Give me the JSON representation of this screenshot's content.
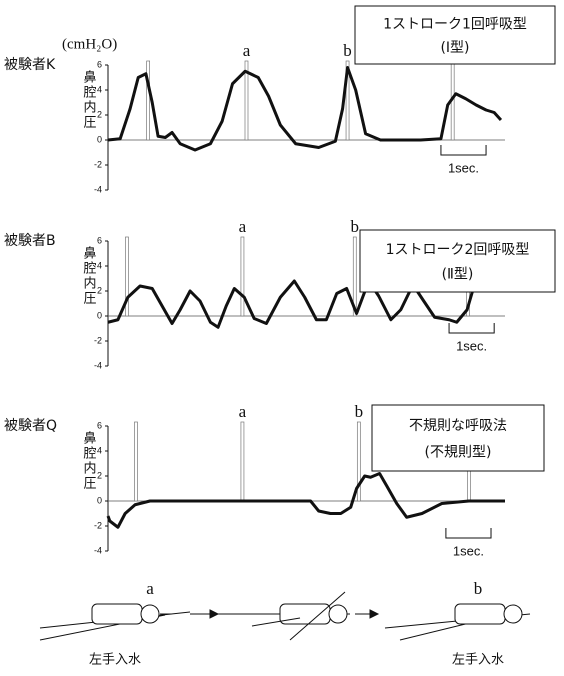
{
  "unit": "(cmH₂O)",
  "chart_data": [
    {
      "type": "line",
      "title": "被験者K",
      "y_label": "鼻腔内圧",
      "box_text": [
        "1ストローク1回呼吸型",
        "(Ⅰ型)"
      ],
      "xlim": [
        0,
        8.8
      ],
      "ylim": [
        -4,
        6
      ],
      "yticks": [
        -4,
        -2,
        0,
        2,
        4,
        6
      ],
      "x": [
        0,
        0.27,
        0.49,
        0.67,
        0.84,
        0.98,
        1.11,
        1.27,
        1.42,
        1.6,
        1.93,
        2.27,
        2.53,
        2.76,
        3.04,
        3.33,
        3.56,
        3.82,
        4.16,
        4.67,
        5.04,
        5.2,
        5.31,
        5.49,
        5.71,
        6.04,
        6.93,
        7.38,
        7.53,
        7.71,
        7.93,
        8.16,
        8.38,
        8.56,
        8.71
      ],
      "series": [
        {
          "color": "#111111",
          "values": [
            0,
            0.1,
            2.5,
            5,
            5.3,
            3,
            0.3,
            0.2,
            0.6,
            -0.3,
            -0.8,
            -0.3,
            1.5,
            4.5,
            5.5,
            5,
            3.5,
            1.2,
            -0.3,
            -0.6,
            -0.1,
            2.5,
            5.8,
            4,
            0.5,
            0,
            0,
            0.1,
            2.8,
            3.7,
            3.3,
            2.8,
            2.4,
            2.2,
            1.6
          ]
        }
      ],
      "event_x": [
        0.89,
        3.07,
        5.31,
        7.64
      ],
      "event_labels": [
        {
          "x": 3.07,
          "text": "a"
        },
        {
          "x": 5.31,
          "text": "b"
        }
      ],
      "scale_bar": {
        "x": 7.38,
        "length": 1,
        "label": "1sec."
      }
    },
    {
      "type": "line",
      "title": "被験者B",
      "y_label": "鼻腔内圧",
      "box_text": [
        "1ストローク2回呼吸型",
        "(Ⅱ型)"
      ],
      "xlim": [
        0,
        8.8
      ],
      "ylim": [
        -4,
        6
      ],
      "yticks": [
        -4,
        -2,
        0,
        2,
        4,
        6
      ],
      "x": [
        0,
        0.22,
        0.44,
        0.71,
        0.98,
        1.2,
        1.42,
        1.6,
        1.82,
        2.04,
        2.27,
        2.44,
        2.62,
        2.8,
        3.02,
        3.24,
        3.51,
        3.82,
        4.13,
        4.36,
        4.62,
        4.84,
        5.07,
        5.29,
        5.51,
        5.78,
        6.0,
        6.27,
        6.49,
        6.76,
        6.98,
        7.24,
        7.56,
        7.73,
        7.96,
        8.13,
        8.31,
        8.49
      ],
      "series": [
        {
          "color": "#111111",
          "values": [
            -0.5,
            -0.3,
            1.5,
            2.4,
            2.2,
            0.8,
            -0.6,
            0.5,
            2,
            1.2,
            -0.5,
            -0.9,
            0.8,
            2.2,
            1.5,
            -0.2,
            -0.6,
            1.5,
            2.8,
            1.5,
            -0.3,
            -0.3,
            1.8,
            2.2,
            0.2,
            2.8,
            1.6,
            -0.3,
            0.5,
            2.5,
            1.3,
            -0.1,
            -0.3,
            -0.5,
            0.5,
            2.6,
            3.1,
            2.2
          ]
        }
      ],
      "event_x": [
        0.42,
        2.98,
        5.47,
        7.98
      ],
      "event_labels": [
        {
          "x": 2.98,
          "text": "a"
        },
        {
          "x": 5.47,
          "text": "b"
        }
      ],
      "scale_bar": {
        "x": 7.56,
        "length": 1,
        "label": "1sec."
      }
    },
    {
      "type": "line",
      "title": "被験者Q",
      "y_label": "鼻腔内圧",
      "box_text": [
        "不規則な呼吸法",
        "(不規則型)"
      ],
      "xlim": [
        0,
        8.8
      ],
      "ylim": [
        -4,
        6
      ],
      "yticks": [
        -4,
        -2,
        0,
        2,
        4,
        6
      ],
      "x": [
        0,
        0.04,
        0.22,
        0.38,
        0.6,
        0.93,
        2.0,
        3.5,
        4.49,
        4.67,
        4.93,
        5.16,
        5.38,
        5.51,
        5.69,
        5.82,
        6.02,
        6.18,
        6.4,
        6.62,
        6.96,
        7.4,
        8.0,
        8.8
      ],
      "series": [
        {
          "color": "#111111",
          "values": [
            -1.2,
            -1.6,
            -2.1,
            -1.0,
            -0.3,
            0,
            0,
            0,
            0,
            -0.8,
            -1,
            -1,
            -0.5,
            1.0,
            2.0,
            1.9,
            2.2,
            1.2,
            -0.2,
            -1.3,
            -1,
            -0.2,
            0,
            0
          ]
        }
      ],
      "event_x": [
        0.62,
        2.98,
        5.56,
        8.0
      ],
      "event_labels": [
        {
          "x": 2.98,
          "text": "a"
        },
        {
          "x": 5.56,
          "text": "b"
        }
      ],
      "scale_bar": {
        "x": 7.49,
        "length": 1,
        "label": "1sec."
      }
    }
  ],
  "diagram": {
    "top_labels": [
      "a",
      "b"
    ],
    "bottom_labels": [
      "左手入水",
      "左手入水"
    ]
  }
}
